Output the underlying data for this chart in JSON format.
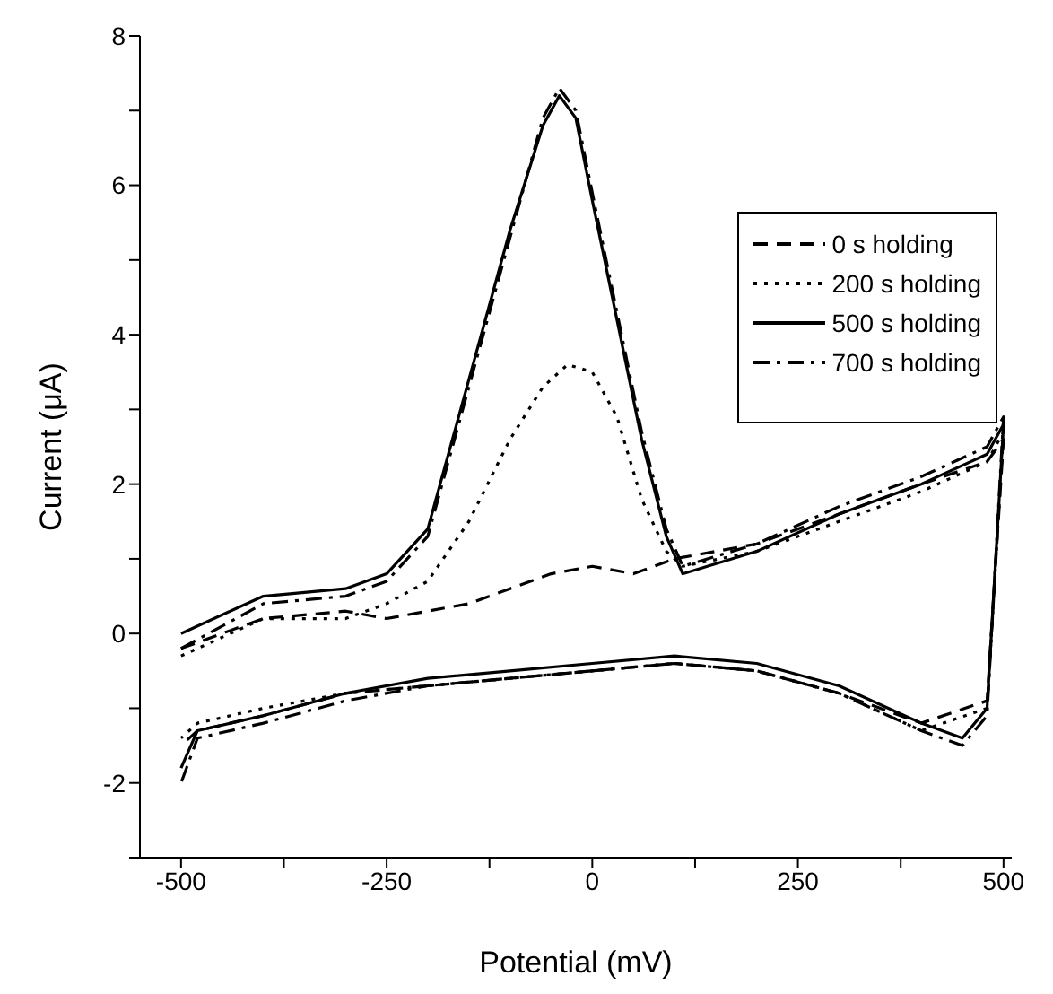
{
  "chart_data": {
    "type": "line",
    "xlabel": "Potential (mV)",
    "ylabel": "Current (μA)",
    "xlim": [
      -550,
      510
    ],
    "ylim": [
      -3,
      8
    ],
    "xticks": [
      -500,
      {
        "value": -375,
        "label": null
      },
      -250,
      {
        "value": -125,
        "label": null
      },
      0,
      {
        "value": 125,
        "label": null
      },
      250,
      {
        "value": 375,
        "label": null
      },
      500
    ],
    "yticks": [
      {
        "value": -3,
        "label": null
      },
      -2,
      {
        "value": -1,
        "label": null
      },
      0,
      {
        "value": 1,
        "label": null
      },
      2,
      {
        "value": 3,
        "label": null
      },
      4,
      {
        "value": 5,
        "label": null
      },
      6,
      {
        "value": 7,
        "label": null
      },
      8
    ],
    "legend": "top right",
    "marker": "none",
    "series": [
      {
        "name": "0 s holding",
        "color": "#000000",
        "line_style": "dashed",
        "x": [
          -500,
          -400,
          -300,
          -250,
          -200,
          -150,
          -100,
          -50,
          0,
          50,
          100,
          200,
          300,
          400,
          480,
          500,
          480,
          400,
          300,
          200,
          100,
          0,
          -100,
          -200,
          -300,
          -400,
          -480,
          -500
        ],
        "values": [
          -0.2,
          0.2,
          0.3,
          0.2,
          0.3,
          0.4,
          0.6,
          0.8,
          0.9,
          0.8,
          1.0,
          1.2,
          1.6,
          2.0,
          2.3,
          2.6,
          -0.9,
          -1.2,
          -0.8,
          -0.5,
          -0.4,
          -0.5,
          -0.6,
          -0.7,
          -0.8,
          -1.1,
          -1.3,
          -1.5
        ]
      },
      {
        "name": "200 s holding",
        "color": "#000000",
        "line_style": "dotted",
        "x": [
          -500,
          -400,
          -300,
          -250,
          -200,
          -150,
          -100,
          -60,
          -30,
          0,
          30,
          60,
          90,
          110,
          200,
          300,
          400,
          480,
          500,
          480,
          400,
          300,
          200,
          100,
          0,
          -100,
          -200,
          -300,
          -400,
          -480,
          -500
        ],
        "values": [
          -0.3,
          0.2,
          0.2,
          0.4,
          0.7,
          1.5,
          2.6,
          3.3,
          3.6,
          3.5,
          2.9,
          1.8,
          1.1,
          0.9,
          1.1,
          1.5,
          1.9,
          2.3,
          2.7,
          -1.0,
          -1.3,
          -0.8,
          -0.5,
          -0.4,
          -0.5,
          -0.6,
          -0.7,
          -0.8,
          -1.0,
          -1.2,
          -1.4
        ]
      },
      {
        "name": "500 s holding",
        "color": "#000000",
        "line_style": "solid",
        "x": [
          -500,
          -400,
          -300,
          -250,
          -200,
          -150,
          -100,
          -60,
          -40,
          -20,
          0,
          30,
          60,
          90,
          110,
          200,
          300,
          400,
          480,
          500,
          480,
          450,
          400,
          300,
          200,
          100,
          0,
          -100,
          -200,
          -300,
          -400,
          -480,
          -500
        ],
        "values": [
          0.0,
          0.5,
          0.6,
          0.8,
          1.4,
          3.4,
          5.4,
          6.8,
          7.2,
          6.9,
          5.8,
          4.2,
          2.6,
          1.3,
          0.8,
          1.1,
          1.6,
          2.0,
          2.4,
          2.8,
          -1.0,
          -1.4,
          -1.2,
          -0.7,
          -0.4,
          -0.3,
          -0.4,
          -0.5,
          -0.6,
          -0.8,
          -1.1,
          -1.3,
          -1.8
        ]
      },
      {
        "name": "700 s holding",
        "color": "#000000",
        "line_style": "dashdot",
        "x": [
          -500,
          -400,
          -300,
          -250,
          -200,
          -150,
          -100,
          -60,
          -40,
          -20,
          0,
          30,
          60,
          90,
          110,
          200,
          300,
          400,
          480,
          500,
          480,
          450,
          400,
          300,
          200,
          100,
          0,
          -100,
          -200,
          -300,
          -400,
          -480,
          -500
        ],
        "values": [
          -0.2,
          0.4,
          0.5,
          0.7,
          1.3,
          3.3,
          5.3,
          6.9,
          7.3,
          7.0,
          5.9,
          4.3,
          2.7,
          1.4,
          0.9,
          1.2,
          1.7,
          2.1,
          2.5,
          2.9,
          -1.1,
          -1.5,
          -1.3,
          -0.8,
          -0.5,
          -0.4,
          -0.5,
          -0.6,
          -0.7,
          -0.9,
          -1.2,
          -1.4,
          -2.0
        ]
      }
    ]
  }
}
